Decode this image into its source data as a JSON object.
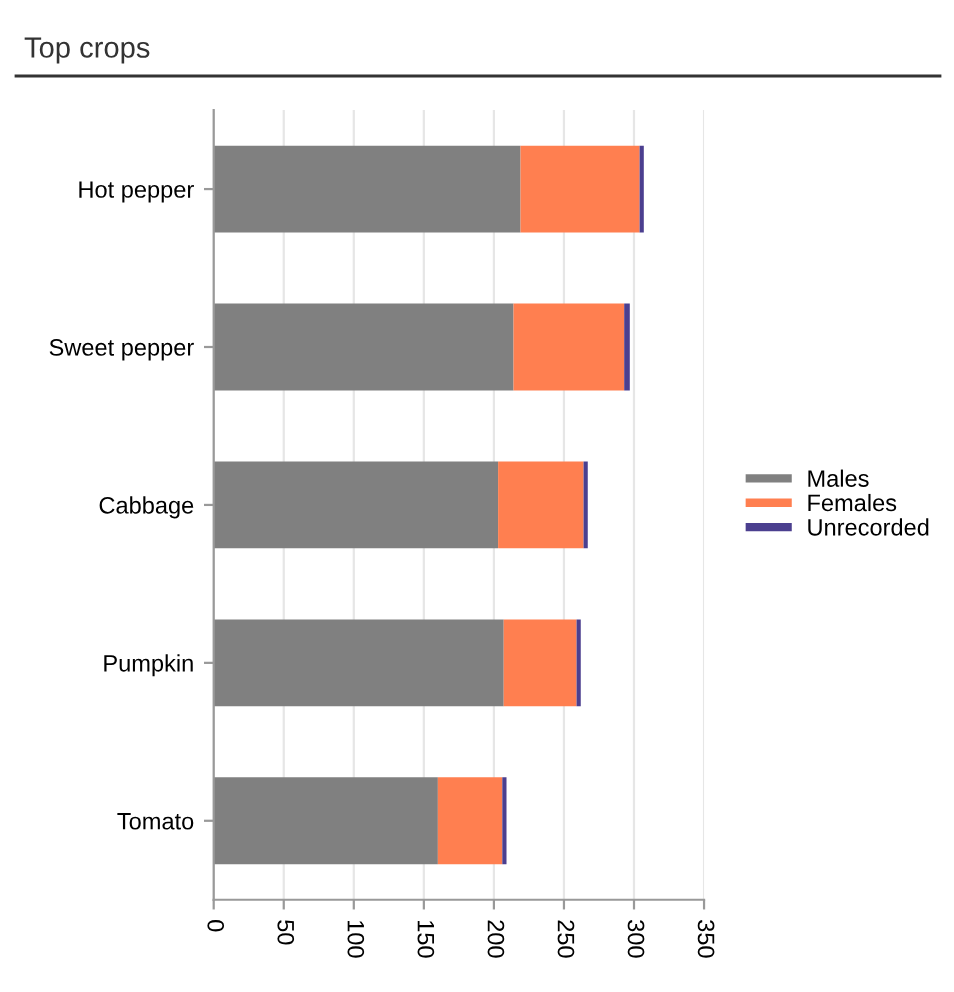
{
  "chart_data": {
    "type": "bar",
    "title": "Top crops",
    "orientation": "horizontal",
    "stacked": true,
    "categories": [
      "Hot pepper",
      "Sweet pepper",
      "Cabbage",
      "Pumpkin",
      "Tomato"
    ],
    "series": [
      {
        "name": "Males",
        "color": "#808080",
        "values": [
          219,
          214,
          203,
          207,
          160
        ]
      },
      {
        "name": "Females",
        "color": "#ff7f50",
        "values": [
          85,
          79,
          61,
          52,
          46
        ]
      },
      {
        "name": "Unrecorded",
        "color": "#4b3f8f",
        "values": [
          3,
          4,
          3,
          3,
          3
        ]
      }
    ],
    "xlim": [
      0,
      350
    ],
    "xticks": [
      0,
      50,
      100,
      150,
      200,
      250,
      300,
      350
    ],
    "grid": "x",
    "legend": "right"
  }
}
